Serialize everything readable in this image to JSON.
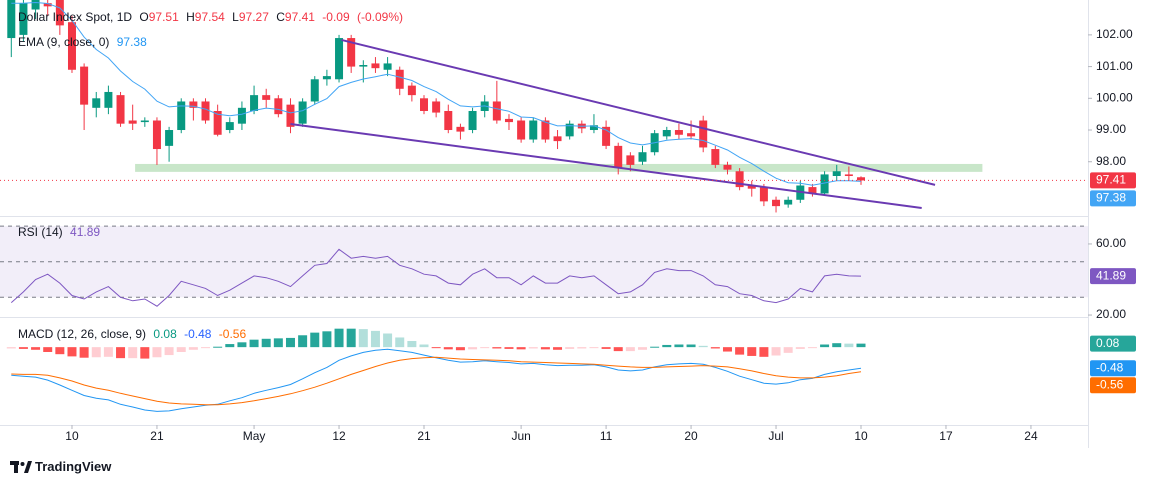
{
  "chart_data": [
    {
      "type": "candlestick",
      "title": "Dollar Index Spot, 1D",
      "labels": {
        "open": "O",
        "high": "H",
        "low": "L",
        "close": "C"
      },
      "change": -0.09,
      "change_label": "(-0.09%)",
      "xlim": [
        -0.93,
        88.7
      ],
      "xticks": [
        {
          "value": 5,
          "label": "10"
        },
        {
          "value": 12,
          "label": "21"
        },
        {
          "value": 20,
          "label": "May"
        },
        {
          "value": 27,
          "label": "12"
        },
        {
          "value": 34,
          "label": "21"
        },
        {
          "value": 42,
          "label": "Jun"
        },
        {
          "value": 49,
          "label": "11"
        },
        {
          "value": 56,
          "label": "20"
        },
        {
          "value": 63,
          "label": "Jul"
        },
        {
          "value": 70,
          "label": "10"
        },
        {
          "value": 77,
          "label": "17"
        },
        {
          "value": 84,
          "label": "24"
        }
      ],
      "ylim": [
        96.32,
        103.1
      ],
      "yticks": [
        {
          "value": 98,
          "label": "98.00"
        },
        {
          "value": 99,
          "label": "99.00"
        },
        {
          "value": 100,
          "label": "100.00"
        },
        {
          "value": 101,
          "label": "101.00"
        },
        {
          "value": 102,
          "label": "102.00"
        }
      ],
      "up_color": "#089981",
      "down_color": "#f23645",
      "open": [
        101.9,
        102.0,
        102.8,
        103.0,
        103.2,
        102.4,
        101.0,
        99.7,
        99.7,
        100.1,
        99.3,
        99.25,
        99.3,
        98.5,
        99.0,
        99.9,
        99.9,
        99.6,
        99.0,
        99.2,
        99.6,
        100.1,
        100.0,
        99.8,
        99.2,
        99.9,
        100.6,
        100.6,
        101.9,
        101.0,
        101.1,
        100.9,
        100.9,
        100.4,
        100.0,
        99.9,
        99.6,
        99.1,
        99.0,
        99.6,
        99.9,
        99.35,
        99.3,
        98.7,
        99.3,
        98.8,
        98.8,
        99.2,
        99.0,
        99.1,
        98.5,
        98.2,
        98.0,
        98.3,
        98.8,
        99.0,
        98.9,
        99.3,
        98.4,
        97.9,
        97.7,
        97.25,
        97.2,
        96.8,
        96.65,
        96.8,
        97.2,
        97.0,
        97.55,
        97.6,
        97.51
      ],
      "high": [
        103.3,
        103.3,
        103.3,
        103.2,
        103.3,
        102.6,
        101.1,
        100.2,
        100.4,
        100.2,
        99.8,
        99.4,
        99.4,
        99.1,
        100.0,
        100.0,
        100.0,
        99.8,
        99.4,
        99.9,
        100.4,
        100.3,
        100.1,
        100.0,
        100.0,
        100.7,
        100.9,
        102.0,
        102.0,
        101.2,
        101.3,
        101.3,
        101.0,
        100.5,
        100.1,
        100.0,
        99.8,
        99.2,
        99.7,
        100.1,
        100.55,
        99.5,
        99.4,
        99.4,
        99.4,
        99.0,
        99.3,
        99.3,
        99.5,
        99.3,
        98.6,
        98.3,
        98.5,
        99.0,
        99.1,
        99.2,
        99.3,
        99.45,
        98.5,
        98.0,
        97.8,
        97.4,
        97.3,
        96.9,
        96.9,
        97.4,
        97.3,
        97.7,
        97.9,
        97.85,
        97.54
      ],
      "low": [
        101.3,
        101.8,
        102.5,
        102.6,
        102.0,
        100.8,
        99.0,
        99.4,
        99.5,
        99.1,
        99.0,
        99.1,
        97.9,
        98.0,
        98.9,
        99.3,
        99.2,
        98.8,
        98.9,
        99.0,
        99.5,
        99.7,
        99.4,
        98.9,
        99.1,
        99.8,
        100.4,
        100.5,
        100.8,
        100.5,
        100.8,
        100.7,
        100.1,
        99.9,
        99.5,
        99.4,
        98.9,
        98.7,
        98.9,
        99.4,
        99.2,
        99.0,
        98.6,
        98.6,
        98.6,
        98.4,
        98.7,
        98.9,
        98.9,
        98.4,
        97.6,
        97.7,
        97.9,
        98.2,
        98.7,
        98.7,
        98.7,
        98.3,
        97.8,
        97.6,
        97.1,
        96.9,
        96.6,
        96.4,
        96.55,
        96.7,
        96.9,
        96.95,
        97.4,
        97.4,
        97.27
      ],
      "close": [
        103.1,
        103.0,
        103.1,
        102.9,
        102.3,
        100.9,
        99.8,
        100.0,
        100.2,
        99.2,
        99.2,
        99.3,
        98.4,
        99.0,
        99.9,
        99.7,
        99.3,
        98.85,
        99.25,
        99.7,
        100.1,
        99.95,
        99.5,
        99.1,
        99.9,
        100.6,
        100.7,
        101.9,
        101.0,
        101.05,
        100.95,
        101.1,
        100.3,
        100.1,
        99.6,
        99.55,
        99.0,
        98.95,
        99.6,
        99.9,
        99.3,
        99.25,
        98.7,
        99.3,
        98.7,
        98.65,
        99.2,
        99.05,
        99.15,
        98.5,
        97.8,
        97.9,
        98.3,
        98.9,
        99.0,
        98.85,
        98.8,
        98.45,
        97.9,
        97.75,
        97.2,
        97.15,
        96.75,
        96.6,
        96.8,
        97.25,
        97.0,
        97.6,
        97.7,
        97.55,
        97.41
      ],
      "series": [
        {
          "name": "EMA (9, close, 0)",
          "color": "#42a5f5",
          "values": [
            103.0,
            103.0,
            103.02,
            102.99,
            102.85,
            102.46,
            101.93,
            101.54,
            101.27,
            100.86,
            100.53,
            100.29,
            99.91,
            99.73,
            99.76,
            99.75,
            99.66,
            99.5,
            99.45,
            99.5,
            99.62,
            99.69,
            99.65,
            99.54,
            99.61,
            99.81,
            99.99,
            100.37,
            100.5,
            100.61,
            100.68,
            100.76,
            100.67,
            100.56,
            100.37,
            100.21,
            99.97,
            99.76,
            99.73,
            99.76,
            99.67,
            99.59,
            99.41,
            99.39,
            99.25,
            99.13,
            99.14,
            99.12,
            99.13,
            99.0,
            98.76,
            98.59,
            98.53,
            98.6,
            98.68,
            98.71,
            98.73,
            98.67,
            98.52,
            98.37,
            98.14,
            97.94,
            97.7,
            97.48,
            97.34,
            97.32,
            97.26,
            97.33,
            97.4,
            97.4,
            97.38
          ]
        }
      ],
      "trendline_color": "#6a3ab2",
      "trendlines": [
        {
          "x": [
            27.2,
            76.1
          ],
          "y": [
            101.84,
            97.27
          ]
        },
        {
          "x": [
            23.0,
            75.0
          ],
          "y": [
            99.19,
            96.54
          ]
        }
      ],
      "zone": {
        "x": [
          10.2,
          80.0
        ],
        "y": [
          97.68,
          97.93
        ],
        "color": "#c8e6c9"
      }
    },
    {
      "type": "line",
      "ylim": [
        18.9,
        74.6
      ],
      "yticks": [
        {
          "value": 60,
          "label": "60.00"
        },
        {
          "value": 20,
          "label": "20.00"
        }
      ],
      "band": [
        30,
        70
      ],
      "midline": 50,
      "band_color": "#7e57c2",
      "series": [
        {
          "name": "RSI (14)",
          "color": "#7e57c2",
          "values": [
            27,
            33,
            40,
            43,
            38,
            31,
            29,
            33,
            36,
            30,
            28,
            29,
            25,
            31,
            39,
            37,
            35,
            31,
            34,
            38,
            42,
            41,
            39,
            36,
            42,
            48,
            49,
            57,
            52,
            53,
            52,
            53,
            48,
            46,
            43,
            42,
            38,
            37,
            43,
            46,
            41,
            41,
            37,
            42,
            38,
            38,
            42,
            41,
            42,
            37,
            32,
            33,
            37,
            44,
            46,
            45,
            45,
            42,
            37,
            36,
            32,
            31,
            28,
            27,
            29,
            35,
            33,
            42,
            43,
            42,
            41.89
          ]
        }
      ]
    },
    {
      "type": "macd",
      "title": "MACD (12, 26, close, 9)",
      "ylim": [
        -1.77,
        0.64
      ],
      "hist_colors": [
        "#26a69a",
        "#b2dfdb",
        "#ffcdd2",
        "#ff5252"
      ],
      "histogram": [
        -0.03,
        -0.04,
        -0.06,
        -0.11,
        -0.16,
        -0.21,
        -0.24,
        -0.23,
        -0.22,
        -0.25,
        -0.25,
        -0.26,
        -0.23,
        -0.18,
        -0.11,
        -0.06,
        -0.01,
        0.01,
        0.07,
        0.11,
        0.17,
        0.19,
        0.2,
        0.21,
        0.27,
        0.33,
        0.36,
        0.42,
        0.42,
        0.41,
        0.37,
        0.31,
        0.22,
        0.14,
        0.06,
        -0.01,
        -0.05,
        -0.07,
        -0.05,
        -0.02,
        -0.03,
        -0.04,
        -0.05,
        -0.03,
        -0.05,
        -0.06,
        -0.04,
        -0.03,
        -0.01,
        -0.04,
        -0.09,
        -0.09,
        -0.06,
        0.01,
        0.05,
        0.06,
        0.06,
        0.03,
        -0.03,
        -0.1,
        -0.17,
        -0.2,
        -0.22,
        -0.19,
        -0.13,
        -0.04,
        -0.01,
        0.06,
        0.09,
        0.08,
        0.08
      ],
      "series": [
        {
          "color": "#2196f3",
          "values": [
            -0.64,
            -0.66,
            -0.68,
            -0.75,
            -0.86,
            -0.98,
            -1.1,
            -1.16,
            -1.2,
            -1.3,
            -1.36,
            -1.43,
            -1.46,
            -1.45,
            -1.4,
            -1.36,
            -1.32,
            -1.3,
            -1.22,
            -1.15,
            -1.05,
            -0.98,
            -0.92,
            -0.85,
            -0.72,
            -0.58,
            -0.46,
            -0.3,
            -0.2,
            -0.12,
            -0.07,
            -0.05,
            -0.08,
            -0.12,
            -0.18,
            -0.24,
            -0.3,
            -0.34,
            -0.33,
            -0.31,
            -0.33,
            -0.35,
            -0.38,
            -0.37,
            -0.4,
            -0.42,
            -0.41,
            -0.41,
            -0.4,
            -0.45,
            -0.52,
            -0.54,
            -0.52,
            -0.45,
            -0.4,
            -0.38,
            -0.37,
            -0.39,
            -0.46,
            -0.55,
            -0.66,
            -0.74,
            -0.82,
            -0.84,
            -0.81,
            -0.74,
            -0.71,
            -0.62,
            -0.56,
            -0.52,
            -0.48
          ]
        },
        {
          "color": "#ff6d00",
          "values": [
            -0.61,
            -0.62,
            -0.62,
            -0.64,
            -0.7,
            -0.77,
            -0.86,
            -0.93,
            -0.98,
            -1.05,
            -1.11,
            -1.17,
            -1.23,
            -1.27,
            -1.29,
            -1.3,
            -1.31,
            -1.31,
            -1.29,
            -1.26,
            -1.22,
            -1.17,
            -1.12,
            -1.06,
            -0.99,
            -0.91,
            -0.82,
            -0.72,
            -0.62,
            -0.53,
            -0.44,
            -0.36,
            -0.3,
            -0.26,
            -0.24,
            -0.23,
            -0.25,
            -0.27,
            -0.28,
            -0.29,
            -0.3,
            -0.31,
            -0.33,
            -0.34,
            -0.35,
            -0.36,
            -0.37,
            -0.38,
            -0.39,
            -0.41,
            -0.43,
            -0.45,
            -0.46,
            -0.46,
            -0.45,
            -0.44,
            -0.43,
            -0.42,
            -0.43,
            -0.45,
            -0.49,
            -0.54,
            -0.6,
            -0.65,
            -0.68,
            -0.7,
            -0.7,
            -0.68,
            -0.65,
            -0.6,
            -0.56
          ]
        }
      ]
    }
  ],
  "footer": {
    "brand": "TradingView"
  }
}
